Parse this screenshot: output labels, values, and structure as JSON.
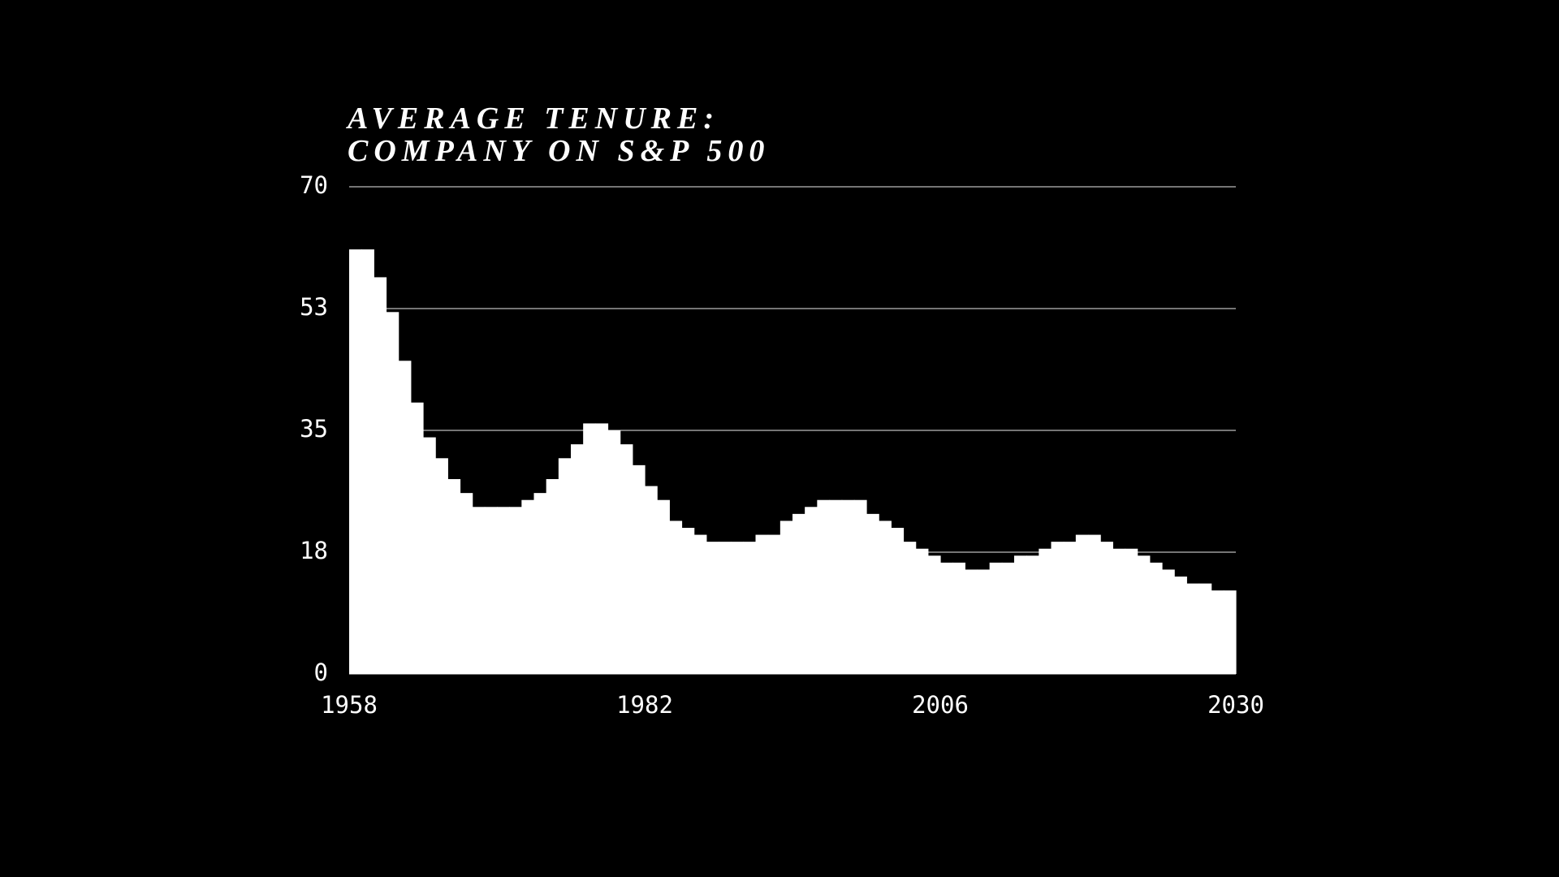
{
  "chart_data": {
    "type": "histogram",
    "title": [
      "AVERAGE TENURE:",
      "COMPANY ON S&P 500"
    ],
    "bins": [
      1958,
      1959,
      1960,
      1961,
      1962,
      1963,
      1964,
      1965,
      1966,
      1967,
      1968,
      1969,
      1970,
      1971,
      1972,
      1973,
      1974,
      1975,
      1976,
      1977,
      1978,
      1979,
      1980,
      1981,
      1982,
      1983,
      1984,
      1985,
      1986,
      1987,
      1988,
      1989,
      1990,
      1991,
      1992,
      1993,
      1994,
      1995,
      1996,
      1997,
      1998,
      1999,
      2000,
      2001,
      2002,
      2003,
      2004,
      2005,
      2006,
      2007,
      2008,
      2009,
      2010,
      2011,
      2012,
      2013,
      2014,
      2015,
      2016,
      2017,
      2018,
      2019,
      2020,
      2021,
      2022,
      2023,
      2024,
      2025,
      2026,
      2027,
      2028,
      2029,
      2030
    ],
    "values": [
      61,
      61,
      57,
      52,
      45,
      39,
      34,
      31,
      28,
      26,
      24,
      24,
      24,
      24,
      25,
      26,
      28,
      31,
      33,
      36,
      36,
      35,
      33,
      30,
      27,
      25,
      22,
      21,
      20,
      19,
      19,
      19,
      19,
      20,
      20,
      22,
      23,
      24,
      25,
      25,
      25,
      25,
      23,
      22,
      21,
      19,
      18,
      17,
      16,
      16,
      15,
      15,
      16,
      16,
      17,
      17,
      18,
      19,
      19,
      20,
      20,
      19,
      18,
      18,
      17,
      16,
      15,
      14,
      13,
      13,
      12,
      12
    ],
    "color": "#ffffff",
    "xlim": [
      1958,
      2030
    ],
    "xticks": [
      1958,
      1982,
      2006,
      2030
    ],
    "ylim": [
      0,
      70
    ],
    "yticks": [
      0,
      {
        "value": 17.5,
        "label": "18"
      },
      35,
      {
        "value": 52.5,
        "label": "53"
      },
      70
    ],
    "grid": true
  }
}
